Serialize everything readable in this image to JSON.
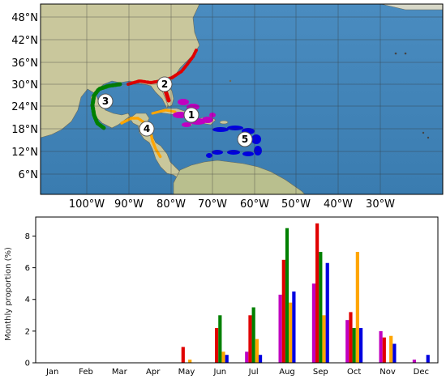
{
  "map": {
    "lat_labels": [
      "48°N",
      "42°N",
      "36°N",
      "30°N",
      "24°N",
      "18°N",
      "12°N",
      "6°N"
    ],
    "lon_labels": [
      "100°W",
      "90°W",
      "80°W",
      "70°W",
      "60°W",
      "50°W",
      "40°W",
      "30°W"
    ],
    "region_markers": [
      "1",
      "2",
      "3",
      "4",
      "5"
    ],
    "colors": {
      "ocean": "#3c7fb4",
      "land": "#c8c9a0",
      "region1": "#c000c0",
      "region2": "#e00000",
      "region3": "#008000",
      "region4": "#ffa500",
      "region5": "#0000e0"
    }
  },
  "chart_data": {
    "type": "bar",
    "categories": [
      "Jan",
      "Feb",
      "Mar",
      "Apr",
      "May",
      "Jun",
      "Jul",
      "Aug",
      "Sep",
      "Oct",
      "Nov",
      "Dec"
    ],
    "ylabel": "Monthly proportion (%)",
    "xlabel": "",
    "ylim": [
      0,
      9.2
    ],
    "yticks": [
      0,
      2,
      4,
      6,
      8
    ],
    "grid": false,
    "series": [
      {
        "color": "#c000c0",
        "values": [
          0,
          0,
          0,
          0,
          0,
          0,
          0.7,
          4.3,
          5.0,
          2.7,
          2.0,
          0.2
        ]
      },
      {
        "color": "#e00000",
        "values": [
          0,
          0,
          0,
          0,
          1.0,
          2.2,
          3.0,
          6.5,
          8.8,
          3.2,
          1.6,
          0
        ]
      },
      {
        "color": "#008000",
        "values": [
          0,
          0,
          0,
          0,
          0,
          3.0,
          3.5,
          8.5,
          7.0,
          2.2,
          0,
          0
        ]
      },
      {
        "color": "#ffa500",
        "values": [
          0,
          0,
          0,
          0,
          0.2,
          0.7,
          1.5,
          3.8,
          3.0,
          7.0,
          1.7,
          0
        ]
      },
      {
        "color": "#0000e0",
        "values": [
          0,
          0,
          0,
          0,
          0,
          0.5,
          0.5,
          4.5,
          6.3,
          2.2,
          1.2,
          0.5
        ]
      }
    ]
  }
}
